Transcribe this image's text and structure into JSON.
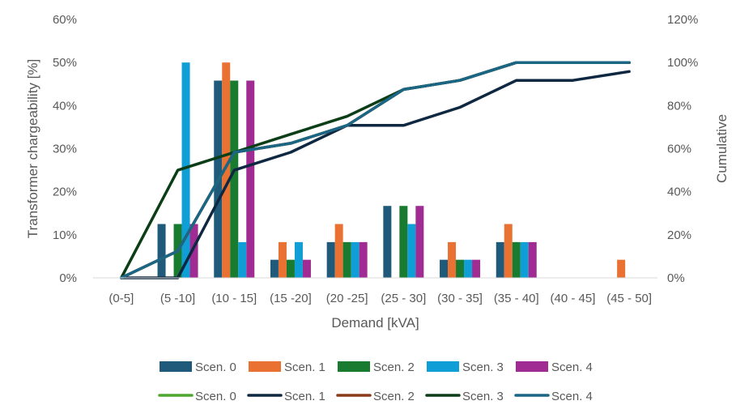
{
  "chart_data": {
    "type": "bar+line",
    "categories": [
      "(0-5]",
      "(5 -10]",
      "(10 - 15]",
      "(15 -20]",
      "(20 -25]",
      "(25 - 30]",
      "(30 - 35]",
      "(35 - 40]",
      "(40 - 45]",
      "(45 - 50]"
    ],
    "xlabel": "Demand [kVA]",
    "ylabel": "Transformer chargeability [%]",
    "y2label": "Cumulative",
    "ylim": [
      0,
      60
    ],
    "y2lim": [
      0,
      120
    ],
    "y_ticks": [
      "0%",
      "10%",
      "20%",
      "30%",
      "40%",
      "50%",
      "60%"
    ],
    "y2_ticks": [
      "0%",
      "20%",
      "40%",
      "60%",
      "80%",
      "100%",
      "120%"
    ],
    "grid": false,
    "legend_position": "bottom",
    "bar_series": [
      {
        "name": "Scen. 0",
        "color": "#1f5a7a",
        "values": [
          0,
          12.5,
          45.8,
          4.2,
          8.3,
          16.7,
          4.2,
          8.3,
          0,
          0
        ]
      },
      {
        "name": "Scen. 1",
        "color": "#e97132",
        "values": [
          0,
          0,
          50,
          8.3,
          12.5,
          0,
          8.3,
          12.5,
          0,
          4.2
        ]
      },
      {
        "name": "Scen. 2",
        "color": "#197b30",
        "values": [
          0,
          12.5,
          45.8,
          4.2,
          8.3,
          16.7,
          4.2,
          8.3,
          0,
          0
        ]
      },
      {
        "name": "Scen. 3",
        "color": "#0f9ed5",
        "values": [
          0,
          50,
          8.3,
          8.3,
          8.3,
          12.5,
          4.2,
          8.3,
          0,
          0
        ]
      },
      {
        "name": "Scen. 4",
        "color": "#a02b93",
        "values": [
          0,
          12.5,
          45.8,
          4.2,
          8.3,
          16.7,
          4.2,
          8.3,
          0,
          0
        ]
      }
    ],
    "line_series": [
      {
        "name": "Scen. 0",
        "color": "#4ea72e",
        "values": [
          0,
          12.5,
          58.3,
          62.5,
          70.8,
          87.5,
          91.7,
          100,
          100,
          100
        ]
      },
      {
        "name": "Scen. 1",
        "color": "#0e2841",
        "values": [
          0,
          0,
          50,
          58.3,
          70.8,
          70.8,
          79.2,
          91.7,
          91.7,
          95.8
        ]
      },
      {
        "name": "Scen. 2",
        "color": "#8b3a1a",
        "values": [
          0,
          12.5,
          58.3,
          62.5,
          70.8,
          87.5,
          91.7,
          100,
          100,
          100
        ]
      },
      {
        "name": "Scen. 3",
        "color": "#0b3d17",
        "values": [
          0,
          50,
          58.3,
          66.7,
          75,
          87.5,
          91.7,
          100,
          100,
          100
        ]
      },
      {
        "name": "Scen. 4",
        "color": "#1b6585",
        "values": [
          0,
          12.5,
          58.3,
          62.5,
          70.8,
          87.5,
          91.7,
          100,
          100,
          100
        ]
      }
    ]
  }
}
